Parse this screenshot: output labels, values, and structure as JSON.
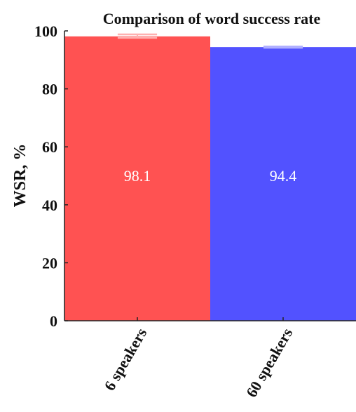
{
  "chart_data": {
    "type": "bar",
    "title": "Comparison of word success rate",
    "xlabel": "",
    "ylabel": "WSR, %",
    "ylim": [
      0,
      100
    ],
    "yticks": [
      0,
      20,
      40,
      60,
      80,
      100
    ],
    "categories": [
      "6 speakers",
      "60 speakers"
    ],
    "values": [
      98.1,
      94.4
    ],
    "data_labels": [
      "98.1",
      "94.4"
    ],
    "error_low": [
      97.6,
      94.2
    ],
    "error_high": [
      98.8,
      94.6
    ],
    "colors": [
      "#ff5252",
      "#5252ff"
    ],
    "errorbar_colors": [
      "#ffb0b0",
      "#b0b0ff"
    ],
    "grid": false,
    "legend": "none"
  }
}
